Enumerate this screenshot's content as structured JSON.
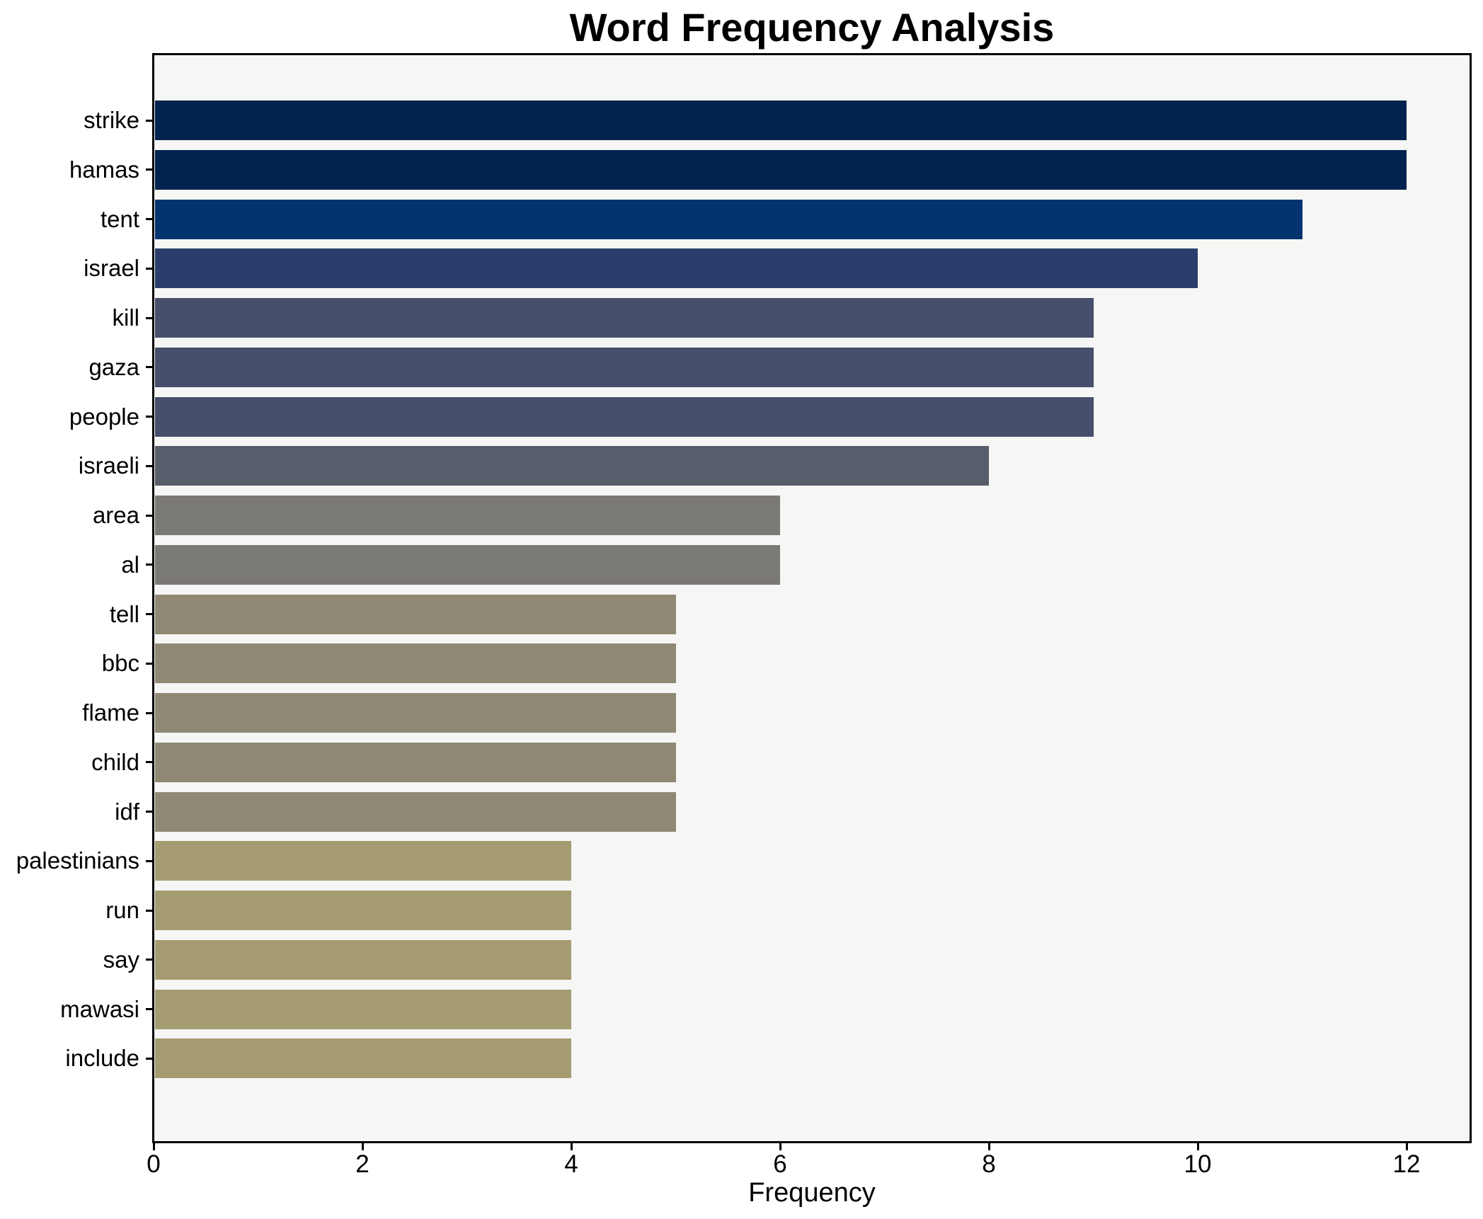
{
  "title": "Word Frequency Analysis",
  "xlabel": "Frequency",
  "colors": {
    "plot_background": "#f6f6f5",
    "frame": "#000000",
    "text": "#000000"
  },
  "chart_data": {
    "type": "bar",
    "orientation": "horizontal",
    "title": "Word Frequency Analysis",
    "xlabel": "Frequency",
    "ylabel": "",
    "categories": [
      "strike",
      "hamas",
      "tent",
      "israel",
      "kill",
      "gaza",
      "people",
      "israeli",
      "area",
      "al",
      "tell",
      "bbc",
      "flame",
      "child",
      "idf",
      "palestinians",
      "run",
      "say",
      "mawasi",
      "include"
    ],
    "values": [
      12,
      12,
      11,
      10,
      9,
      9,
      9,
      8,
      6,
      6,
      5,
      5,
      5,
      5,
      5,
      4,
      4,
      4,
      4,
      4
    ],
    "bar_colors": [
      "#02224f",
      "#02224f",
      "#04346f",
      "#2b3e6b",
      "#464f6c",
      "#464f6c",
      "#464f6c",
      "#585d6b",
      "#7b7974",
      "#7b7974",
      "#8f8974",
      "#8f8974",
      "#8f8974",
      "#8f8974",
      "#8f8974",
      "#a49c70",
      "#a49c70",
      "#a49c70",
      "#a49c70",
      "#a49c70"
    ],
    "xlim": [
      0,
      12.6
    ],
    "xticks": [
      0,
      2,
      4,
      6,
      8,
      10,
      12
    ],
    "grid": false,
    "legend": null
  }
}
